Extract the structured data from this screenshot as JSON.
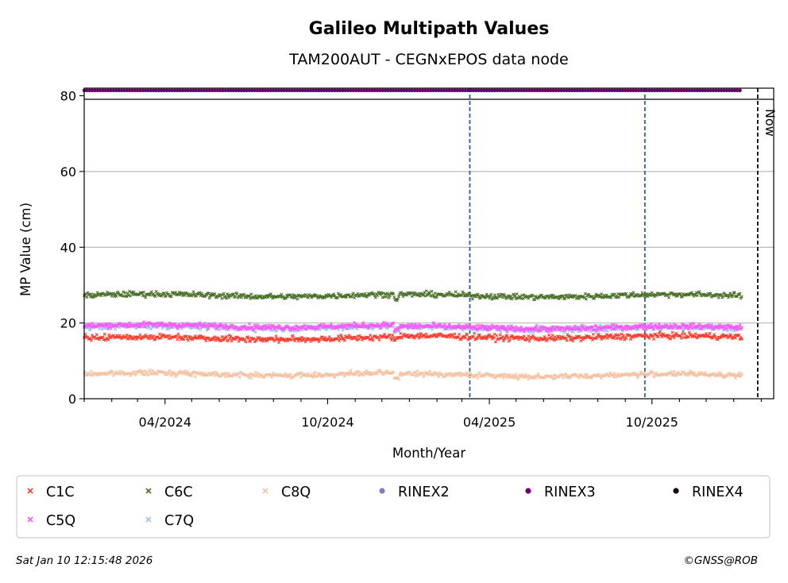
{
  "chart_data": {
    "type": "scatter",
    "title": "Galileo Multipath Values",
    "subtitle": "TAM200AUT - CEGNxEPOS data node",
    "xlabel": "Month/Year",
    "ylabel": "MP Value (cm)",
    "xlim": [
      "2024-01-01",
      "2026-02-15"
    ],
    "ylim": [
      0,
      82
    ],
    "grid": "horizontal",
    "x_ticks": [
      "2024-04-01",
      "2024-10-01",
      "2025-04-01",
      "2025-10-01"
    ],
    "x_tick_labels": [
      "04/2024",
      "10/2024",
      "04/2025",
      "10/2025"
    ],
    "y_ticks": [
      0,
      20,
      40,
      60,
      80
    ],
    "y_tick_labels": [
      "0",
      "20",
      "40",
      "60",
      "80"
    ],
    "data_start": "2024-01-01",
    "data_end": "2026-01-10",
    "step_change_date": "2024-12-15",
    "event_lines": [
      {
        "date": "2025-03-10",
        "color": "#1f5fa8"
      },
      {
        "date": "2025-09-23",
        "color": "#1f5fa8"
      }
    ],
    "now_line": {
      "date": "2026-01-28",
      "label": "Now"
    },
    "series": [
      {
        "name": "C1C",
        "marker": "x",
        "color": "#ff3c2e",
        "mean_before": 16.0,
        "mean_after": 16.3,
        "noise": 0.55
      },
      {
        "name": "C6C",
        "marker": "x",
        "color": "#4a7028",
        "mean_before": 27.3,
        "mean_after": 27.2,
        "noise": 0.5
      },
      {
        "name": "C8Q",
        "marker": "x",
        "color": "#f4c2a0",
        "mean_before": 6.5,
        "mean_after": 6.2,
        "noise": 0.45
      },
      {
        "name": "RINEX2",
        "marker": "dot",
        "color": "#8878c0"
      },
      {
        "name": "RINEX3",
        "marker": "dot",
        "color": "#6a0068",
        "constant": 81.4
      },
      {
        "name": "RINEX4",
        "marker": "dot",
        "color": "#1a0020"
      },
      {
        "name": "C5Q",
        "marker": "x",
        "color": "#ff55ff",
        "mean_before": 19.2,
        "mean_after": 18.8,
        "noise": 0.5
      },
      {
        "name": "C7Q",
        "marker": "x",
        "color": "#9ec0e8",
        "mean_before": 18.9,
        "mean_after": 18.6,
        "noise": 0.55
      }
    ]
  },
  "footer": {
    "timestamp": "Sat Jan 10 12:15:48 2026",
    "credit": "©GNSS@ROB"
  }
}
